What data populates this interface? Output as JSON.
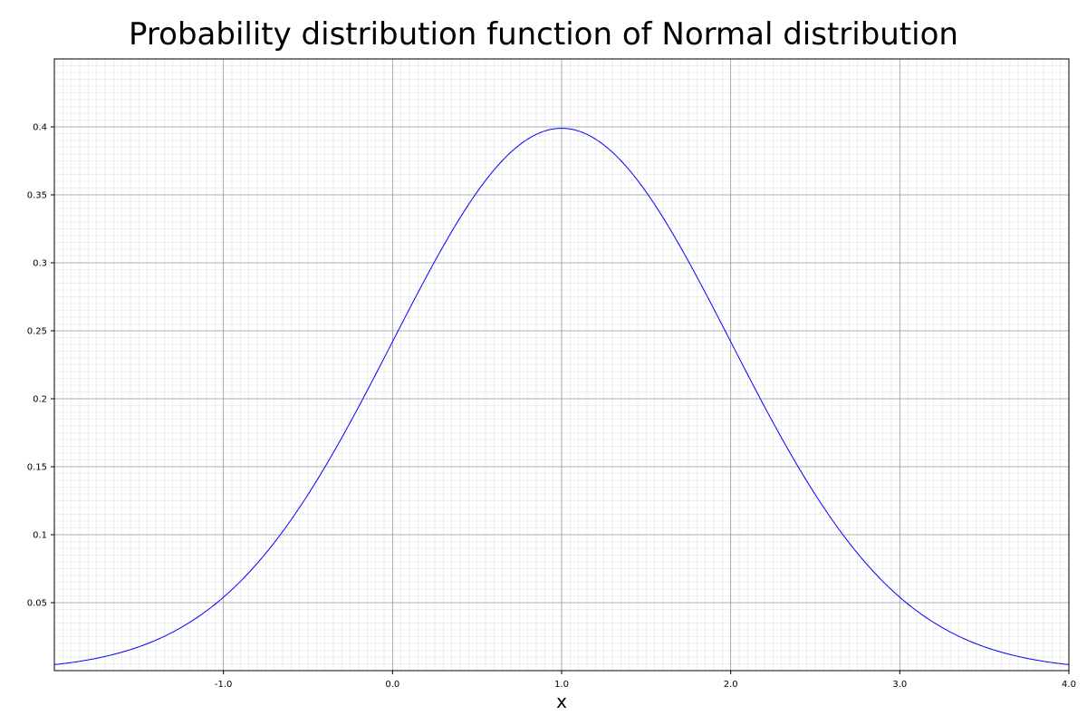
{
  "chart_data": {
    "type": "line",
    "title": "Probability distribution function of Normal distribution",
    "xlabel": "x",
    "ylabel": "",
    "xlim": [
      -2.0,
      4.0
    ],
    "ylim": [
      0.0,
      0.45
    ],
    "x_ticks": [
      -1.0,
      0.0,
      1.0,
      2.0,
      3.0,
      4.0
    ],
    "x_tick_labels": [
      "-1.0",
      "0.0",
      "1.0",
      "2.0",
      "3.0",
      "4.0"
    ],
    "y_ticks": [
      0.05,
      0.1,
      0.15,
      0.2,
      0.25,
      0.3,
      0.35,
      0.4
    ],
    "y_tick_labels": [
      "0.05",
      "0.1",
      "0.15",
      "0.2",
      "0.25",
      "0.3",
      "0.35",
      "0.4"
    ],
    "grid": true,
    "minor_grid": true,
    "series": [
      {
        "color": "#0000ff",
        "distribution": "normal",
        "mean": 1.0,
        "std": 1.0,
        "x": [
          -2.0,
          -1.75,
          -1.5,
          -1.25,
          -1.0,
          -0.75,
          -0.5,
          -0.25,
          0.0,
          0.25,
          0.5,
          0.75,
          1.0,
          1.25,
          1.5,
          1.75,
          2.0,
          2.25,
          2.5,
          2.75,
          3.0,
          3.25,
          3.5,
          3.75,
          4.0
        ],
        "y": [
          0.0044,
          0.0091,
          0.0175,
          0.0317,
          0.054,
          0.0863,
          0.1295,
          0.1826,
          0.242,
          0.3011,
          0.3521,
          0.3867,
          0.3989,
          0.3867,
          0.3521,
          0.3011,
          0.242,
          0.1826,
          0.1295,
          0.0863,
          0.054,
          0.0317,
          0.0175,
          0.0091,
          0.0044
        ]
      }
    ]
  }
}
